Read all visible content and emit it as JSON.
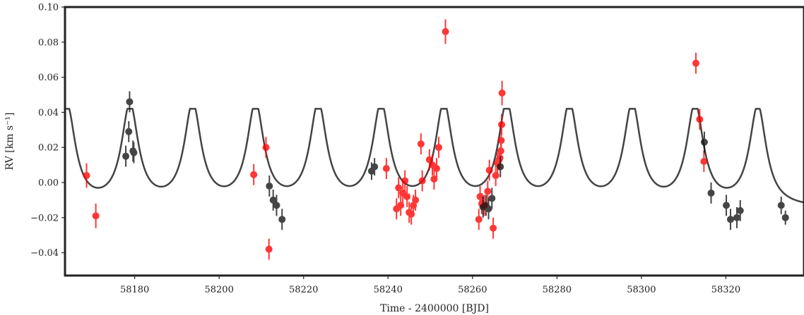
{
  "chart_data": {
    "type": "scatter",
    "xlabel": "Time - 2400000 [BJD]",
    "ylabel": "RV [km s⁻¹]",
    "xlim": [
      58163.5,
      58338.5
    ],
    "ylim": [
      -0.053,
      0.1
    ],
    "xticks": [
      58180,
      58200,
      58220,
      58240,
      58260,
      58280,
      58300,
      58320
    ],
    "xtick_labels": [
      "58180",
      "58200",
      "58220",
      "58240",
      "58260",
      "58280",
      "58300",
      "58320"
    ],
    "yticks": [
      -0.04,
      -0.02,
      0.0,
      0.02,
      0.04,
      0.06,
      0.08,
      0.1
    ],
    "ytick_labels": [
      "−0.04",
      "−0.02",
      "0.00",
      "0.02",
      "0.04",
      "0.06",
      "0.08",
      "0.10"
    ],
    "grid": false,
    "model_curve": {
      "color": "#444444",
      "period_days": 14.87,
      "peak_times": [
        58164.0,
        58178.87,
        58193.74,
        58208.61,
        58223.48,
        58238.35,
        58253.22,
        58268.09,
        58282.96,
        58297.83,
        58312.7,
        58327.57
      ],
      "min_value": -0.015,
      "max_value": 0.042
    },
    "series": [
      {
        "color": "#ff0000",
        "points": [
          {
            "x": 58168.6,
            "y": 0.004,
            "err": 0.007
          },
          {
            "x": 58170.8,
            "y": -0.019,
            "err": 0.007
          },
          {
            "x": 58208.2,
            "y": 0.0045,
            "err": 0.006
          },
          {
            "x": 58211.1,
            "y": 0.02,
            "err": 0.006
          },
          {
            "x": 58211.8,
            "y": -0.038,
            "err": 0.006
          },
          {
            "x": 58239.6,
            "y": 0.008,
            "err": 0.006
          },
          {
            "x": 58242.0,
            "y": -0.015,
            "err": 0.006
          },
          {
            "x": 58242.5,
            "y": -0.003,
            "err": 0.006
          },
          {
            "x": 58243.0,
            "y": -0.013,
            "err": 0.006
          },
          {
            "x": 58243.5,
            "y": -0.006,
            "err": 0.006
          },
          {
            "x": 58244.0,
            "y": 0.001,
            "err": 0.006
          },
          {
            "x": 58244.5,
            "y": -0.008,
            "err": 0.006
          },
          {
            "x": 58245.0,
            "y": -0.017,
            "err": 0.006
          },
          {
            "x": 58245.5,
            "y": -0.018,
            "err": 0.006
          },
          {
            "x": 58246.0,
            "y": -0.013,
            "err": 0.006
          },
          {
            "x": 58246.5,
            "y": -0.01,
            "err": 0.006
          },
          {
            "x": 58247.8,
            "y": 0.022,
            "err": 0.006
          },
          {
            "x": 58248.1,
            "y": 0.001,
            "err": 0.006
          },
          {
            "x": 58249.8,
            "y": 0.013,
            "err": 0.006
          },
          {
            "x": 58250.5,
            "y": 0.01,
            "err": 0.006
          },
          {
            "x": 58250.9,
            "y": 0.002,
            "err": 0.006
          },
          {
            "x": 58251.5,
            "y": 0.008,
            "err": 0.006
          },
          {
            "x": 58252.0,
            "y": 0.02,
            "err": 0.006
          },
          {
            "x": 58253.6,
            "y": 0.086,
            "err": 0.007
          },
          {
            "x": 58261.5,
            "y": -0.021,
            "err": 0.006
          },
          {
            "x": 58261.8,
            "y": -0.008,
            "err": 0.006
          },
          {
            "x": 58262.2,
            "y": -0.012,
            "err": 0.006
          },
          {
            "x": 58262.8,
            "y": -0.013,
            "err": 0.006
          },
          {
            "x": 58263.6,
            "y": -0.005,
            "err": 0.006
          },
          {
            "x": 58264.0,
            "y": 0.007,
            "err": 0.006
          },
          {
            "x": 58264.9,
            "y": -0.026,
            "err": 0.006
          },
          {
            "x": 58265.5,
            "y": 0.004,
            "err": 0.006
          },
          {
            "x": 58265.9,
            "y": 0.011,
            "err": 0.006
          },
          {
            "x": 58266.3,
            "y": 0.013,
            "err": 0.006
          },
          {
            "x": 58266.5,
            "y": 0.014,
            "err": 0.006
          },
          {
            "x": 58266.7,
            "y": 0.018,
            "err": 0.006
          },
          {
            "x": 58266.8,
            "y": 0.024,
            "err": 0.006
          },
          {
            "x": 58266.9,
            "y": 0.033,
            "err": 0.006
          },
          {
            "x": 58267.0,
            "y": 0.051,
            "err": 0.007
          },
          {
            "x": 58312.9,
            "y": 0.068,
            "err": 0.006
          },
          {
            "x": 58313.8,
            "y": 0.036,
            "err": 0.006
          },
          {
            "x": 58314.8,
            "y": 0.012,
            "err": 0.006
          }
        ]
      },
      {
        "color": "#111111",
        "points": [
          {
            "x": 58177.9,
            "y": 0.015,
            "err": 0.006
          },
          {
            "x": 58178.6,
            "y": 0.029,
            "err": 0.006
          },
          {
            "x": 58178.8,
            "y": 0.046,
            "err": 0.006
          },
          {
            "x": 58179.6,
            "y": 0.018,
            "err": 0.006
          },
          {
            "x": 58179.8,
            "y": 0.017,
            "err": 0.006
          },
          {
            "x": 58211.9,
            "y": -0.002,
            "err": 0.006
          },
          {
            "x": 58212.8,
            "y": -0.01,
            "err": 0.006
          },
          {
            "x": 58213.6,
            "y": -0.013,
            "err": 0.006
          },
          {
            "x": 58214.9,
            "y": -0.021,
            "err": 0.006
          },
          {
            "x": 58236.1,
            "y": 0.0065,
            "err": 0.005
          },
          {
            "x": 58236.8,
            "y": 0.009,
            "err": 0.005
          },
          {
            "x": 58262.5,
            "y": -0.014,
            "err": 0.006
          },
          {
            "x": 58263.2,
            "y": -0.013,
            "err": 0.006
          },
          {
            "x": 58263.8,
            "y": -0.015,
            "err": 0.006
          },
          {
            "x": 58264.6,
            "y": -0.009,
            "err": 0.006
          },
          {
            "x": 58266.6,
            "y": 0.009,
            "err": 0.006
          },
          {
            "x": 58314.9,
            "y": 0.023,
            "err": 0.006
          },
          {
            "x": 58316.5,
            "y": -0.006,
            "err": 0.006
          },
          {
            "x": 58320.1,
            "y": -0.013,
            "err": 0.006
          },
          {
            "x": 58321.1,
            "y": -0.021,
            "err": 0.006
          },
          {
            "x": 58322.6,
            "y": -0.02,
            "err": 0.006
          },
          {
            "x": 58323.4,
            "y": -0.016,
            "err": 0.006
          },
          {
            "x": 58333.1,
            "y": -0.013,
            "err": 0.005
          },
          {
            "x": 58334.1,
            "y": -0.02,
            "err": 0.004
          }
        ]
      }
    ]
  }
}
